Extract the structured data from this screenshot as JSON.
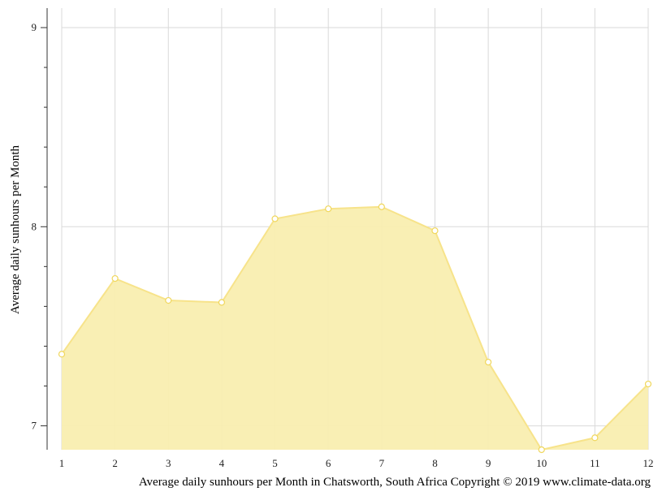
{
  "chart_data": {
    "type": "area",
    "x": [
      1,
      2,
      3,
      4,
      5,
      6,
      7,
      8,
      9,
      10,
      11,
      12
    ],
    "categories": [
      "1",
      "2",
      "3",
      "4",
      "5",
      "6",
      "7",
      "8",
      "9",
      "10",
      "11",
      "12"
    ],
    "series": [
      {
        "values": [
          7.36,
          7.74,
          7.63,
          7.62,
          8.04,
          8.09,
          8.1,
          7.98,
          7.32,
          6.88,
          6.94,
          7.21
        ]
      }
    ],
    "ylabel": "Average daily sunhours per Month",
    "xlabel": "",
    "caption": "Average daily sunhours per Month in Chatsworth, South Africa Copyright © 2019 www.climate-data.org",
    "yticks": [
      "7",
      "8",
      "9"
    ],
    "ylim": [
      6.88,
      9.1
    ],
    "xlim": [
      1,
      12
    ],
    "grid": true,
    "colors": {
      "fill": "#f9eeb0",
      "line": "#f7e38a",
      "marker_fill": "#ffffff",
      "marker_stroke": "#f0d75c",
      "grid": "#d9d9d9"
    }
  }
}
